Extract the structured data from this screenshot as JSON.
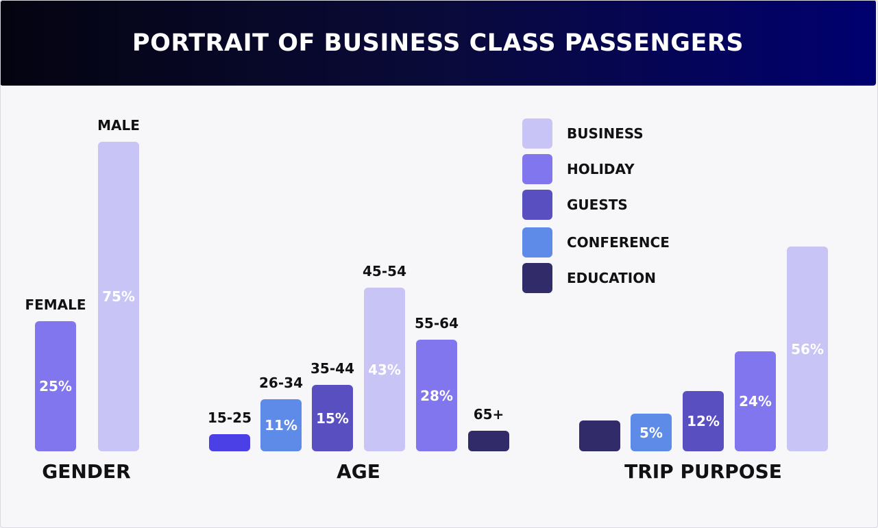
{
  "title": "PORTRAIT OF BUSINESS CLASS PASSENGERS",
  "colors": {
    "business": "#c8c4f5",
    "holiday": "#8176ee",
    "guests": "#5a4fc0",
    "conference": "#5e8ae8",
    "education": "#312b69",
    "youngest": "#4b3fe6"
  },
  "legend": [
    {
      "label": "BUSINESS",
      "color": "#c8c4f5"
    },
    {
      "label": "HOLIDAY",
      "color": "#8176ee"
    },
    {
      "label": "GUESTS",
      "color": "#5a4fc0"
    },
    {
      "label": "CONFERENCE",
      "color": "#5e8ae8"
    },
    {
      "label": "EDUCATION",
      "color": "#312b69"
    }
  ],
  "chart_data": [
    {
      "type": "bar",
      "title": "GENDER",
      "categories": [
        "FEMALE",
        "MALE"
      ],
      "values": [
        25,
        75
      ],
      "labels": [
        "25%",
        "75%"
      ],
      "colors": [
        "#8176ee",
        "#c8c4f5"
      ],
      "show_categories": true
    },
    {
      "type": "bar",
      "title": "AGE",
      "categories": [
        "15-25",
        "26-34",
        "35-44",
        "45-54",
        "55-64",
        "65+"
      ],
      "values": [
        1,
        11,
        15,
        43,
        28,
        2
      ],
      "labels": [
        "",
        "11%",
        "15%",
        "43%",
        "28%",
        ""
      ],
      "colors": [
        "#4b3fe6",
        "#5e8ae8",
        "#5a4fc0",
        "#c8c4f5",
        "#8176ee",
        "#312b69"
      ],
      "show_categories": true
    },
    {
      "type": "bar",
      "title": "TRIP PURPOSE",
      "categories": [
        "EDUCATION",
        "CONFERENCE",
        "GUESTS",
        "HOLIDAY",
        "BUSINESS"
      ],
      "values": [
        3,
        5,
        12,
        24,
        56
      ],
      "labels": [
        "",
        "5%",
        "12%",
        "24%",
        "56%"
      ],
      "colors": [
        "#312b69",
        "#5e8ae8",
        "#5a4fc0",
        "#8176ee",
        "#c8c4f5"
      ],
      "show_categories": false
    }
  ]
}
